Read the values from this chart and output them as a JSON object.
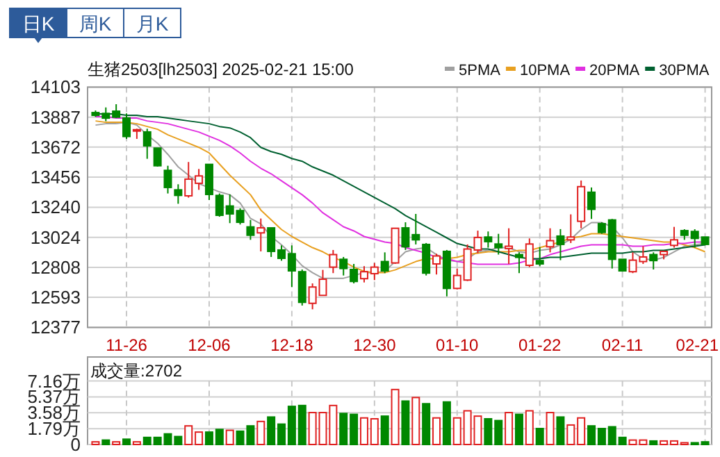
{
  "chart_data": [
    {
      "type": "other",
      "annotations": [
        "日K",
        "周K",
        "月K"
      ]
    },
    {
      "type": "candlestick",
      "title": "生猪2503[lh2503] 2025-02-21 15:00",
      "categories": [
        null,
        null,
        null,
        "11-26",
        null,
        null,
        null,
        null,
        null,
        null,
        null,
        "12-06",
        null,
        null,
        null,
        null,
        null,
        null,
        null,
        "12-18",
        null,
        null,
        null,
        null,
        null,
        null,
        null,
        "12-30",
        null,
        null,
        null,
        null,
        null,
        null,
        null,
        "01-10",
        null,
        null,
        null,
        null,
        null,
        null,
        null,
        "01-22",
        null,
        null,
        null,
        null,
        null,
        null,
        null,
        "02-11",
        null,
        null,
        null,
        null,
        null,
        null,
        null,
        "02-21"
      ],
      "ohlc": [
        [
          13920,
          13935,
          13890,
          13900
        ],
        [
          13914,
          13957,
          13858,
          13880
        ],
        [
          13930,
          13980,
          13881,
          13887
        ],
        [
          13881,
          13914,
          13731,
          13748
        ],
        [
          13788,
          13804,
          13731,
          13797
        ],
        [
          13781,
          13804,
          13588,
          13681
        ],
        [
          13665,
          13665,
          13532,
          13538
        ],
        [
          13505,
          13538,
          13339,
          13382
        ],
        [
          13365,
          13405,
          13265,
          13325
        ],
        [
          13322,
          13565,
          13309,
          13442
        ],
        [
          13412,
          13515,
          13365,
          13465
        ],
        [
          13548,
          13548,
          13292,
          13332
        ],
        [
          13325,
          13339,
          13172,
          13182
        ],
        [
          13249,
          13332,
          13126,
          13192
        ],
        [
          13216,
          13232,
          13116,
          13132
        ],
        [
          13099,
          13149,
          13006,
          13039
        ],
        [
          13056,
          13159,
          12923,
          13092
        ],
        [
          13092,
          13092,
          12883,
          12923
        ],
        [
          12933,
          12966,
          12856,
          12873
        ],
        [
          12906,
          12966,
          12667,
          12783
        ],
        [
          12777,
          12793,
          12534,
          12557
        ],
        [
          12550,
          12693,
          12507,
          12667
        ],
        [
          12607,
          12790,
          12607,
          12723
        ],
        [
          12810,
          12933,
          12767,
          12900
        ],
        [
          12866,
          12883,
          12750,
          12800
        ],
        [
          12793,
          12833,
          12693,
          12707
        ],
        [
          12727,
          12817,
          12700,
          12777
        ],
        [
          12763,
          12840,
          12717,
          12810
        ],
        [
          12850,
          12916,
          12767,
          12783
        ],
        [
          12840,
          13089,
          12833,
          13089
        ],
        [
          13092,
          13132,
          12933,
          12956
        ],
        [
          13043,
          13192,
          12973,
          13006
        ],
        [
          12973,
          12983,
          12750,
          12767
        ],
        [
          12833,
          12906,
          12757,
          12890
        ],
        [
          12923,
          12933,
          12600,
          12657
        ],
        [
          12657,
          12800,
          12650,
          12750
        ],
        [
          12717,
          12973,
          12710,
          12940
        ],
        [
          12933,
          13072,
          12910,
          13023
        ],
        [
          13026,
          13066,
          12950,
          12993
        ],
        [
          12976,
          13049,
          12900,
          12950
        ],
        [
          12943,
          13089,
          12833,
          12960
        ],
        [
          12900,
          12916,
          12767,
          12880
        ],
        [
          12823,
          13016,
          12810,
          12976
        ],
        [
          12857,
          12953,
          12817,
          12833
        ],
        [
          12956,
          13089,
          12916,
          13000
        ],
        [
          13033,
          13083,
          12860,
          12973
        ],
        [
          13006,
          13189,
          12983,
          13026
        ],
        [
          13139,
          13432,
          13089,
          13388
        ],
        [
          13348,
          13382,
          13156,
          13225
        ],
        [
          13122,
          13132,
          13049,
          13059
        ],
        [
          13149,
          13156,
          12800,
          12866
        ],
        [
          12866,
          12866,
          12777,
          12783
        ],
        [
          12777,
          12916,
          12767,
          12860
        ],
        [
          12850,
          12960,
          12833,
          12883
        ],
        [
          12900,
          12916,
          12793,
          12857
        ],
        [
          12900,
          12923,
          12866,
          12923
        ],
        [
          12966,
          13099,
          12950,
          13006
        ],
        [
          13072,
          13082,
          13006,
          13039
        ],
        [
          13066,
          13082,
          12950,
          13016
        ],
        [
          13026,
          13026,
          12966,
          12973
        ]
      ],
      "colors": [
        "#008800",
        "#008800",
        "#008800",
        "#008800",
        "#e02020",
        "#008800",
        "#008800",
        "#008800",
        "#008800",
        "#e02020",
        "#e02020",
        "#008800",
        "#008800",
        "#008800",
        "#008800",
        "#008800",
        "#e02020",
        "#008800",
        "#008800",
        "#008800",
        "#008800",
        "#e02020",
        "#e02020",
        "#e02020",
        "#008800",
        "#008800",
        "#e02020",
        "#e02020",
        "#008800",
        "#e02020",
        "#008800",
        "#008800",
        "#008800",
        "#e02020",
        "#008800",
        "#e02020",
        "#e02020",
        "#e02020",
        "#008800",
        "#008800",
        "#e02020",
        "#008800",
        "#e02020",
        "#008800",
        "#e02020",
        "#008800",
        "#e02020",
        "#e02020",
        "#008800",
        "#008800",
        "#008800",
        "#008800",
        "#e02020",
        "#e02020",
        "#008800",
        "#e02020",
        "#e02020",
        "#008800",
        "#008800",
        "#008800"
      ],
      "series": [
        {
          "type": "line",
          "name": "5PMA",
          "color": "#a0a0a0",
          "values": [
            13830,
            13840,
            13840,
            13850,
            13830,
            13760,
            13700,
            13620,
            13530,
            13470,
            13410,
            13380,
            13350,
            13330,
            13270,
            13160,
            13120,
            13030,
            12970,
            12900,
            12820,
            12770,
            12730,
            12730,
            12730,
            12750,
            12770,
            12770,
            12780,
            12850,
            12920,
            12940,
            12950,
            12900,
            12860,
            12850,
            12870,
            12920,
            12930,
            12950,
            12950,
            12920,
            12910,
            12930,
            12940,
            12970,
            13010,
            13080,
            13130,
            13130,
            13100,
            13020,
            12920,
            12870,
            12860,
            12880,
            12920,
            12960,
            12970,
            12980
          ]
        },
        {
          "type": "line",
          "name": "10PMA",
          "color": "#e8a020",
          "values": [
            13860,
            13850,
            13850,
            13850,
            13840,
            13820,
            13800,
            13760,
            13730,
            13700,
            13670,
            13630,
            13550,
            13470,
            13400,
            13330,
            13220,
            13150,
            13080,
            13030,
            12990,
            12950,
            12920,
            12880,
            12850,
            12810,
            12780,
            12770,
            12770,
            12790,
            12820,
            12850,
            12870,
            12870,
            12870,
            12880,
            12900,
            12910,
            12920,
            12920,
            12920,
            12930,
            12930,
            12950,
            12970,
            12990,
            13020,
            13030,
            13050,
            13050,
            13040,
            13030,
            13020,
            13010,
            13000,
            12990,
            12990,
            12970,
            12950,
            12920
          ]
        },
        {
          "type": "line",
          "name": "20PMA",
          "color": "#e030e0",
          "values": [
            13890,
            13890,
            13880,
            13880,
            13880,
            13860,
            13850,
            13840,
            13820,
            13800,
            13780,
            13750,
            13720,
            13680,
            13630,
            13570,
            13520,
            13480,
            13430,
            13380,
            13330,
            13270,
            13200,
            13150,
            13100,
            13070,
            13030,
            13010,
            12990,
            12980,
            12950,
            12930,
            12910,
            12880,
            12870,
            12850,
            12840,
            12830,
            12830,
            12830,
            12830,
            12840,
            12860,
            12870,
            12900,
            12920,
            12940,
            12960,
            12970,
            12970,
            12970,
            12970,
            12960,
            12960,
            12970,
            12970,
            12980,
            12980,
            12990,
            12990
          ]
        },
        {
          "type": "line",
          "name": "30PMA",
          "color": "#006030",
          "values": [
            13910,
            13910,
            13910,
            13900,
            13900,
            13890,
            13890,
            13880,
            13870,
            13860,
            13850,
            13840,
            13820,
            13810,
            13780,
            13740,
            13670,
            13640,
            13620,
            13590,
            13570,
            13530,
            13500,
            13470,
            13430,
            13390,
            13350,
            13310,
            13270,
            13230,
            13180,
            13140,
            13100,
            13060,
            13020,
            12980,
            12960,
            12940,
            12940,
            12920,
            12900,
            12880,
            12870,
            12870,
            12880,
            12880,
            12890,
            12900,
            12910,
            12910,
            12910,
            12910,
            12920,
            12920,
            12930,
            12930,
            12940,
            12950,
            12960,
            12970
          ]
        }
      ],
      "ylim": [
        12377,
        14103
      ],
      "yticks": [
        12377,
        12593,
        12808,
        13024,
        13240,
        13456,
        13672,
        13887,
        14103
      ],
      "grid": true,
      "legend": "top right"
    },
    {
      "type": "bar",
      "title": "成交量:2702",
      "categories": [
        null,
        null,
        null,
        null,
        null,
        null,
        null,
        null,
        null,
        null,
        null,
        null,
        null,
        null,
        null,
        null,
        null,
        null,
        null,
        null,
        null,
        null,
        null,
        null,
        null,
        null,
        null,
        null,
        null,
        null,
        null,
        null,
        null,
        null,
        null,
        null,
        null,
        null,
        null,
        null,
        null,
        null,
        null,
        null,
        null,
        null,
        null,
        null,
        null,
        null,
        null,
        null,
        null,
        null,
        null,
        null,
        null,
        null,
        null,
        null
      ],
      "values": [
        0.3,
        0.5,
        0.3,
        0.6,
        0.3,
        0.8,
        0.8,
        1.2,
        0.9,
        2.1,
        1.4,
        1.4,
        1.7,
        1.6,
        1.5,
        2.1,
        2.6,
        3.1,
        2.3,
        4.3,
        4.4,
        3.6,
        3.6,
        4.4,
        3.5,
        3.4,
        3.0,
        2.9,
        3.2,
        6.2,
        4.9,
        5.3,
        4.6,
        3.0,
        4.8,
        3.0,
        3.8,
        3.2,
        2.9,
        2.7,
        3.6,
        3.4,
        3.8,
        1.8,
        3.6,
        3.1,
        2.2,
        3.0,
        2.1,
        1.8,
        2.0,
        0.8,
        0.5,
        0.5,
        0.4,
        0.4,
        0.4,
        0.2,
        0.2,
        0.3
      ],
      "colors": [
        "#e02020",
        "#008800",
        "#e02020",
        "#008800",
        "#e02020",
        "#008800",
        "#008800",
        "#008800",
        "#008800",
        "#e02020",
        "#e02020",
        "#008800",
        "#008800",
        "#e02020",
        "#008800",
        "#008800",
        "#e02020",
        "#008800",
        "#008800",
        "#008800",
        "#008800",
        "#e02020",
        "#e02020",
        "#e02020",
        "#008800",
        "#008800",
        "#e02020",
        "#e02020",
        "#008800",
        "#e02020",
        "#008800",
        "#e02020",
        "#008800",
        "#e02020",
        "#008800",
        "#e02020",
        "#e02020",
        "#e02020",
        "#008800",
        "#008800",
        "#e02020",
        "#008800",
        "#e02020",
        "#008800",
        "#e02020",
        "#008800",
        "#e02020",
        "#e02020",
        "#008800",
        "#008800",
        "#008800",
        "#008800",
        "#e02020",
        "#e02020",
        "#008800",
        "#e02020",
        "#e02020",
        "#e02020",
        "#008800",
        "#008800"
      ],
      "ylim": [
        0,
        7.16
      ],
      "yticks": [
        0,
        {
          "value": 1.79,
          "label": "1.79万"
        },
        {
          "value": 3.58,
          "label": "3.58万"
        },
        {
          "value": 5.37,
          "label": "5.37万"
        },
        {
          "value": 7.16,
          "label": "7.16万"
        }
      ],
      "tick_labels": "y",
      "grid": true
    }
  ]
}
